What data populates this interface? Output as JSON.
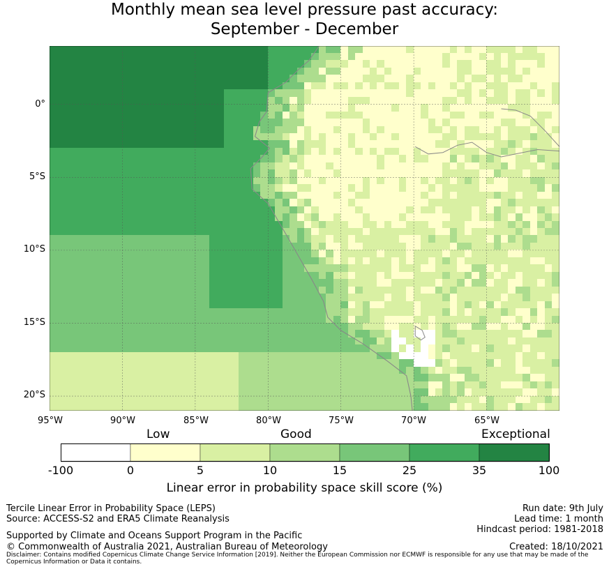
{
  "title_line1": "Monthly mean sea level pressure past accuracy:",
  "title_line2": "September - December",
  "map": {
    "y_ticks": [
      "0°",
      "5°S",
      "10°S",
      "15°S",
      "20°S"
    ],
    "x_ticks": [
      "95°W",
      "90°W",
      "85°W",
      "80°W",
      "75°W",
      "70°W",
      "65°W"
    ],
    "lon_range": [
      -95,
      -60
    ],
    "lat_range": [
      -21,
      4
    ],
    "grid": true
  },
  "colorbar": {
    "categories": [
      "Low",
      "Good",
      "Exceptional"
    ],
    "ticks": [
      "-100",
      "0",
      "5",
      "10",
      "15",
      "25",
      "35",
      "100"
    ],
    "colors": [
      "#ffffff",
      "#ffffcc",
      "#d9f0a3",
      "#addd8e",
      "#78c679",
      "#41ab5d",
      "#238443"
    ],
    "label": "Linear error in probability space skill score (%)"
  },
  "footer": {
    "left1": "Tercile Linear Error in Probability Space (LEPS)",
    "left2": "Source: ACCESS-S2 and ERA5 Climate Reanalysis",
    "left3": "Supported by Climate and Oceans Support Program in the Pacific",
    "left4": "© Commonwealth of Australia 2021, Australian Bureau of Meteorology",
    "right1": "Run date: 9th July",
    "right2": "Lead time: 1 month",
    "right3": "Hindcast period: 1981-2018",
    "right4": "Created: 18/10/2021",
    "disclaimer1": "Disclaimer: Contains modified Copernicus Climate Change Service Information [2019]. Neither the European Commission nor ECMWF is responsible for any use that may be made of the",
    "disclaimer2": "Copernicus Information or Data it contains."
  }
}
